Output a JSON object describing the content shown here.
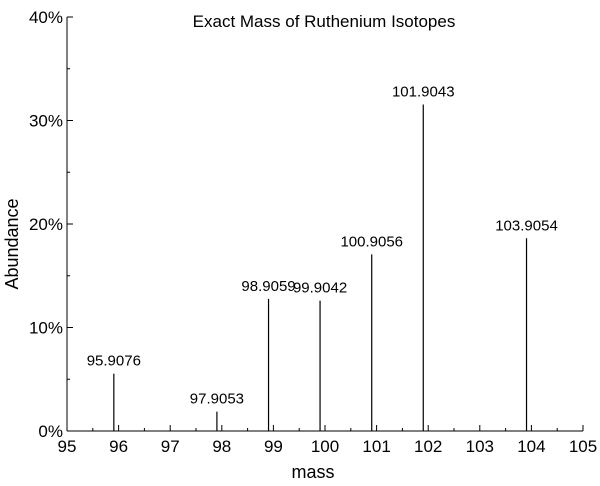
{
  "chart_data": {
    "type": "bar",
    "title": "Exact Mass of Ruthenium Isotopes",
    "xlabel": "mass",
    "ylabel": "Abundance",
    "xlim": [
      95,
      105
    ],
    "ylim": [
      0,
      40
    ],
    "x_ticks": [
      95,
      96,
      97,
      98,
      99,
      100,
      101,
      102,
      103,
      104,
      105
    ],
    "x_tick_labels": [
      "95",
      "96",
      "97",
      "98",
      "99",
      "100",
      "101",
      "102",
      "103",
      "104",
      "105"
    ],
    "y_ticks": [
      0,
      10,
      20,
      30,
      40
    ],
    "y_tick_labels": [
      "0%",
      "10%",
      "20%",
      "30%",
      "40%"
    ],
    "grid": false,
    "points": [
      {
        "x": 95.9076,
        "y": 5.54,
        "label": "95.9076"
      },
      {
        "x": 97.9053,
        "y": 1.87,
        "label": "97.9053"
      },
      {
        "x": 98.9059,
        "y": 12.76,
        "label": "98.9059"
      },
      {
        "x": 99.9042,
        "y": 12.6,
        "label": "99.9042"
      },
      {
        "x": 100.9056,
        "y": 17.06,
        "label": "100.9056"
      },
      {
        "x": 101.9043,
        "y": 31.55,
        "label": "101.9043"
      },
      {
        "x": 103.9054,
        "y": 18.62,
        "label": "103.9054"
      }
    ]
  }
}
